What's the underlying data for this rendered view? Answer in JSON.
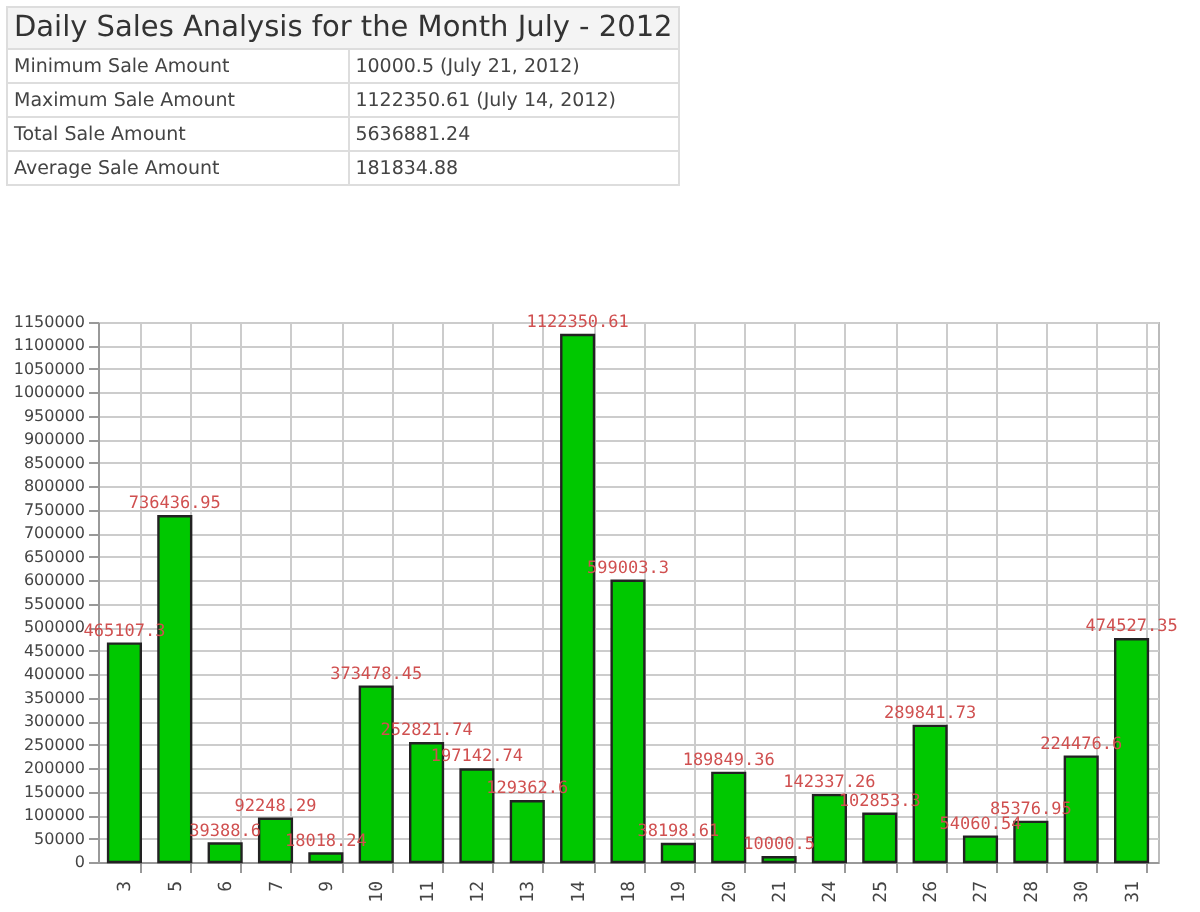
{
  "chart_data": {
    "type": "bar",
    "title": "Daily Sales Analysis for the Month July - 2012",
    "annotations": [
      "Minimum Sale Amount",
      "10000.5 (July 21, 2012)",
      "Maximum Sale Amount",
      "1122350.61 (July 14, 2012)",
      "Total Sale Amount",
      "5636881.24",
      "Average Sale Amount",
      "181834.88"
    ],
    "categories": [
      "3",
      "5",
      "6",
      "7",
      "9",
      "10",
      "11",
      "12",
      "13",
      "14",
      "18",
      "19",
      "20",
      "21",
      "24",
      "25",
      "26",
      "27",
      "28",
      "30",
      "31"
    ],
    "values": [
      465107.3,
      736436.95,
      39388.6,
      92248.29,
      18018.24,
      373478.45,
      252821.74,
      197142.74,
      129362.6,
      1122350.61,
      599003.3,
      38198.61,
      189849.36,
      10000.5,
      142337.26,
      102853.3,
      289841.73,
      54060.54,
      85376.95,
      224476.6,
      474527.35
    ],
    "color": "#00c800",
    "data_labels": true,
    "grid": true,
    "ylim": [
      0,
      1150000
    ],
    "yticks": [
      0,
      50000,
      100000,
      150000,
      200000,
      250000,
      300000,
      350000,
      400000,
      450000,
      500000,
      550000,
      600000,
      650000,
      700000,
      750000,
      800000,
      850000,
      900000,
      950000,
      1000000,
      1050000,
      1100000,
      1150000
    ]
  }
}
